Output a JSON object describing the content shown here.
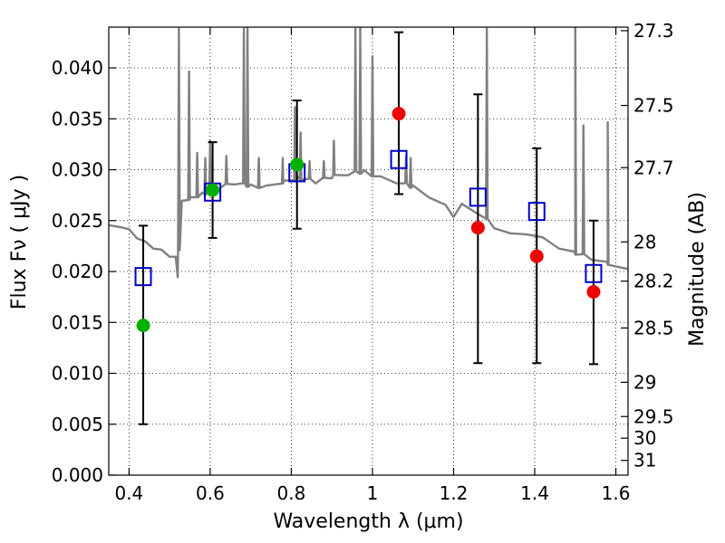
{
  "chart_data": {
    "type": "scatter",
    "xlabel": "Wavelength  λ (μm)",
    "ylabel": "Flux  Fν  ( μJy )",
    "y2label": "Magnitude (AB)",
    "xlim": [
      0.35,
      1.63
    ],
    "ylim": [
      0.0,
      0.044
    ],
    "grid": true,
    "legend": "none",
    "x_ticks": [
      0.4,
      0.6,
      0.8,
      1.0,
      1.2,
      1.4,
      1.6
    ],
    "x_tick_labels": [
      "0.4",
      "0.6",
      "0.8",
      "1",
      "1.2",
      "1.4",
      "1.6"
    ],
    "y_ticks": [
      0.0,
      0.005,
      0.01,
      0.015,
      0.02,
      0.025,
      0.03,
      0.035,
      0.04
    ],
    "y_tick_labels": [
      "0.000",
      "0.005",
      "0.010",
      "0.015",
      "0.020",
      "0.025",
      "0.030",
      "0.035",
      "0.040"
    ],
    "mag_ticks": [
      "27.3",
      "27.5",
      "27.7",
      "28",
      "28.2",
      "28.5",
      "29",
      "29.5",
      "30",
      "31"
    ],
    "colors": {
      "spectrum": "#808080",
      "green_points": "#00b000",
      "red_points": "#ee0000",
      "model_squares": "#0000cc",
      "error_bars": "#000000",
      "grid": "#000000"
    },
    "series": [
      {
        "marker": "filled-circle",
        "color": "green",
        "points": [
          {
            "x": 0.435,
            "y": 0.0147
          },
          {
            "x": 0.606,
            "y": 0.028
          },
          {
            "x": 0.814,
            "y": 0.0305
          }
        ]
      },
      {
        "marker": "filled-circle",
        "color": "red",
        "points": [
          {
            "x": 1.065,
            "y": 0.0355
          },
          {
            "x": 1.26,
            "y": 0.0243
          },
          {
            "x": 1.405,
            "y": 0.0215
          },
          {
            "x": 1.545,
            "y": 0.018
          }
        ]
      },
      {
        "marker": "open-square",
        "color": "blue",
        "points": [
          {
            "x": 0.435,
            "y": 0.0195
          },
          {
            "x": 0.606,
            "y": 0.0278
          },
          {
            "x": 0.814,
            "y": 0.0297
          },
          {
            "x": 1.065,
            "y": 0.031
          },
          {
            "x": 1.26,
            "y": 0.0273
          },
          {
            "x": 1.405,
            "y": 0.0259
          },
          {
            "x": 1.545,
            "y": 0.0198
          }
        ]
      }
    ],
    "error_bars": [
      {
        "x": 0.435,
        "low": 0.005,
        "high": 0.0245
      },
      {
        "x": 0.606,
        "low": 0.0233,
        "high": 0.0327
      },
      {
        "x": 0.814,
        "low": 0.0242,
        "high": 0.0368
      },
      {
        "x": 1.065,
        "low": 0.0276,
        "high": 0.0435
      },
      {
        "x": 1.26,
        "low": 0.011,
        "high": 0.0374
      },
      {
        "x": 1.405,
        "low": 0.011,
        "high": 0.0321
      },
      {
        "x": 1.545,
        "low": 0.0109,
        "high": 0.025
      }
    ],
    "spectrum": {
      "continuum": [
        [
          0.35,
          0.0244
        ],
        [
          0.38,
          0.0245
        ],
        [
          0.4,
          0.024
        ],
        [
          0.42,
          0.0234
        ],
        [
          0.44,
          0.0228
        ],
        [
          0.46,
          0.0224
        ],
        [
          0.48,
          0.022
        ],
        [
          0.5,
          0.0216
        ],
        [
          0.515,
          0.0213
        ],
        [
          0.52,
          0.0196
        ],
        [
          0.525,
          0.024
        ],
        [
          0.53,
          0.0268
        ],
        [
          0.55,
          0.0272
        ],
        [
          0.58,
          0.0276
        ],
        [
          0.62,
          0.0282
        ],
        [
          0.66,
          0.0287
        ],
        [
          0.7,
          0.0284
        ],
        [
          0.74,
          0.0283
        ],
        [
          0.78,
          0.0288
        ],
        [
          0.82,
          0.0292
        ],
        [
          0.86,
          0.0288
        ],
        [
          0.9,
          0.0293
        ],
        [
          0.94,
          0.0296
        ],
        [
          0.98,
          0.0298
        ],
        [
          1.02,
          0.0292
        ],
        [
          1.06,
          0.0288
        ],
        [
          1.1,
          0.0283
        ],
        [
          1.14,
          0.0274
        ],
        [
          1.18,
          0.0264
        ],
        [
          1.2,
          0.0255
        ],
        [
          1.22,
          0.0265
        ],
        [
          1.26,
          0.0258
        ],
        [
          1.3,
          0.0244
        ],
        [
          1.34,
          0.0236
        ],
        [
          1.38,
          0.0238
        ],
        [
          1.42,
          0.0232
        ],
        [
          1.46,
          0.0224
        ],
        [
          1.5,
          0.0218
        ],
        [
          1.54,
          0.0213
        ],
        [
          1.58,
          0.0208
        ],
        [
          1.63,
          0.0201
        ]
      ],
      "emission_lines": [
        {
          "x": 0.523,
          "peak": 0.044
        },
        {
          "x": 0.548,
          "peak": 0.0395
        },
        {
          "x": 0.568,
          "peak": 0.0315
        },
        {
          "x": 0.588,
          "peak": 0.031
        },
        {
          "x": 0.6,
          "peak": 0.033
        },
        {
          "x": 0.64,
          "peak": 0.0315
        },
        {
          "x": 0.683,
          "peak": 0.044
        },
        {
          "x": 0.692,
          "peak": 0.044
        },
        {
          "x": 0.72,
          "peak": 0.031
        },
        {
          "x": 0.779,
          "peak": 0.031
        },
        {
          "x": 0.809,
          "peak": 0.036
        },
        {
          "x": 0.823,
          "peak": 0.0335
        },
        {
          "x": 0.845,
          "peak": 0.031
        },
        {
          "x": 0.88,
          "peak": 0.031
        },
        {
          "x": 0.905,
          "peak": 0.033
        },
        {
          "x": 0.958,
          "peak": 0.044
        },
        {
          "x": 0.97,
          "peak": 0.044
        },
        {
          "x": 1.0,
          "peak": 0.041
        },
        {
          "x": 1.083,
          "peak": 0.0315
        },
        {
          "x": 1.094,
          "peak": 0.031
        },
        {
          "x": 1.282,
          "peak": 0.044
        },
        {
          "x": 1.5,
          "peak": 0.044
        },
        {
          "x": 1.52,
          "peak": 0.0345
        },
        {
          "x": 1.58,
          "peak": 0.0345
        }
      ]
    }
  }
}
